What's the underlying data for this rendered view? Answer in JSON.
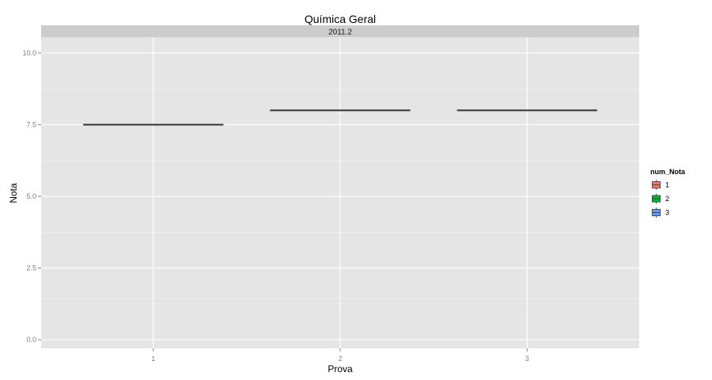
{
  "chart_data": {
    "type": "box",
    "title": "Química Geral",
    "facet_label": "2011.2",
    "xlabel": "Prova",
    "ylabel": "Nota",
    "categories": [
      "1",
      "2",
      "3"
    ],
    "ylim": [
      -0.3,
      10.55
    ],
    "yticks": [
      0.0,
      2.5,
      5.0,
      7.5,
      10.0
    ],
    "ytick_labels": [
      "0.0",
      "2.5",
      "5.0",
      "7.5",
      "10.0"
    ],
    "series": [
      {
        "category": "1",
        "median": 7.5,
        "q1": 7.5,
        "q3": 7.5,
        "min": 7.5,
        "max": 7.5
      },
      {
        "category": "2",
        "median": 8.0,
        "q1": 8.0,
        "q3": 8.0,
        "min": 8.0,
        "max": 8.0
      },
      {
        "category": "3",
        "median": 8.0,
        "q1": 8.0,
        "q3": 8.0,
        "min": 8.0,
        "max": 8.0
      }
    ],
    "legend": {
      "title": "num_Nota",
      "position": "right",
      "entries": [
        {
          "label": "1",
          "color": "#F8766D"
        },
        {
          "label": "2",
          "color": "#00BA38"
        },
        {
          "label": "3",
          "color": "#619CFF"
        }
      ]
    },
    "grid": true,
    "colors": {
      "panel": "#E5E5E5",
      "strip": "#CCCCCC",
      "grid_major": "#FFFFFF",
      "grid_minor": "#F2F2F2",
      "median": "#333333"
    }
  }
}
